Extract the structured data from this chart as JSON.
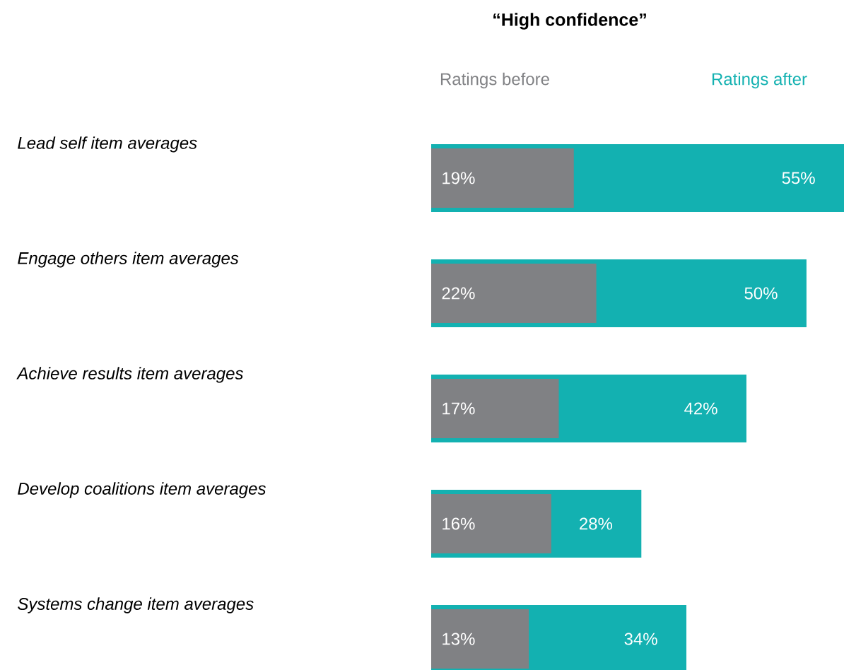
{
  "chart_data": {
    "type": "bar",
    "orientation": "horizontal",
    "title": "“High confidence”",
    "categories": [
      "Lead self item averages",
      "Engage others item averages",
      "Achieve results item averages",
      "Develop coalitions item averages",
      "Systems change item averages"
    ],
    "series": [
      {
        "name": "Ratings before",
        "color": "#808184",
        "values": [
          19,
          22,
          17,
          16,
          13
        ],
        "value_labels": [
          "19%",
          "22%",
          "17%",
          "16%",
          "13%"
        ]
      },
      {
        "name": "Ratings after",
        "color": "#13b1b1",
        "values": [
          55,
          50,
          42,
          28,
          34
        ],
        "value_labels": [
          "55%",
          "50%",
          "42%",
          "28%",
          "34%"
        ]
      }
    ]
  }
}
